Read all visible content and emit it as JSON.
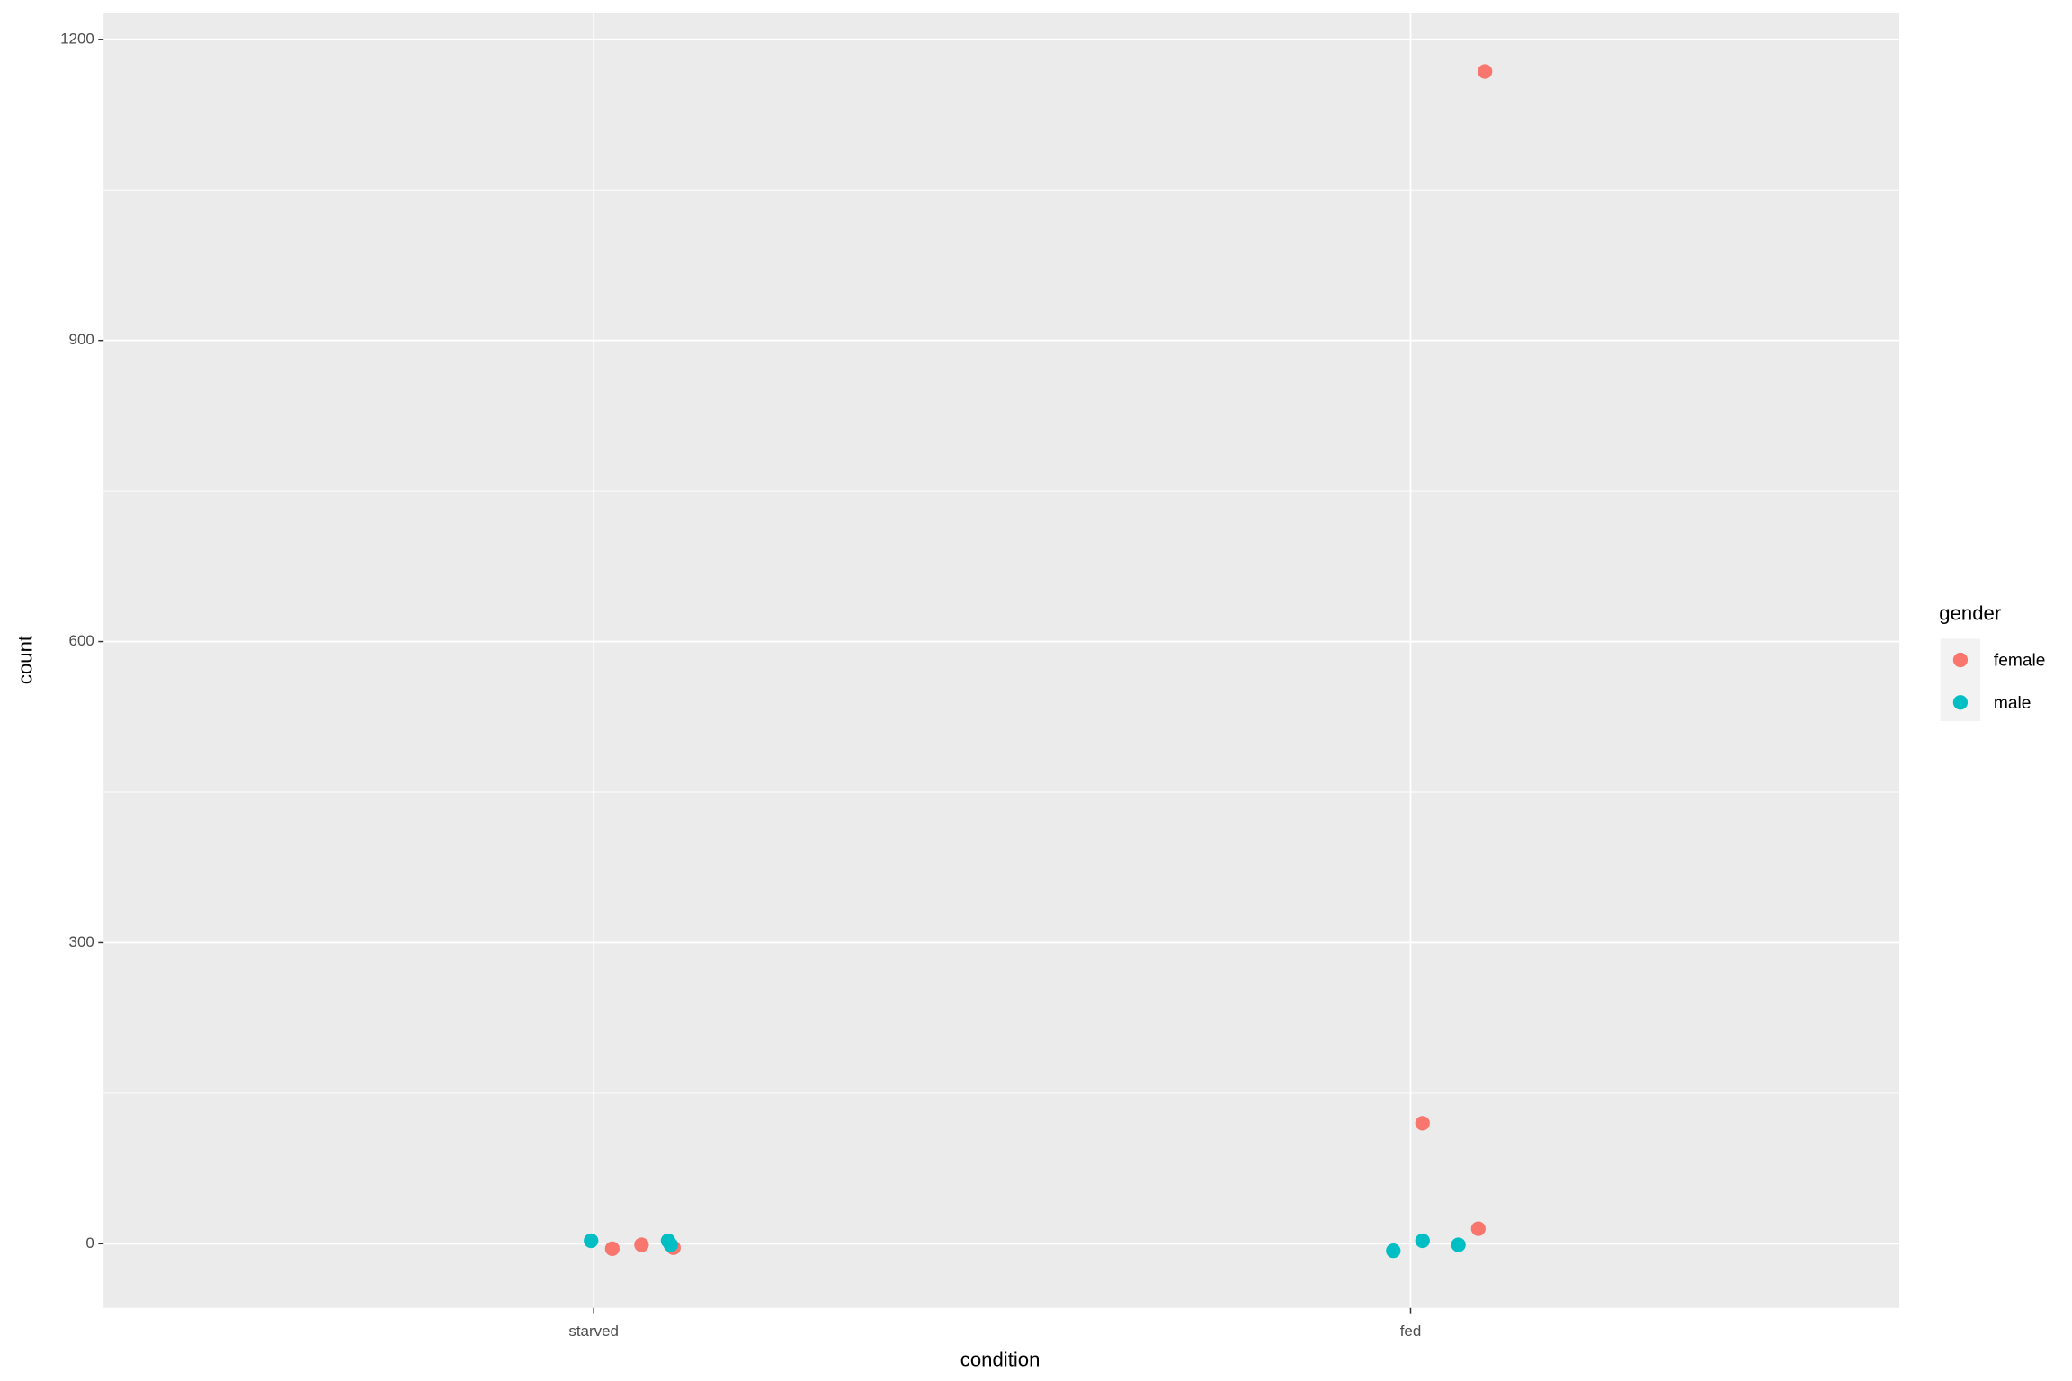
{
  "chart_data": {
    "type": "scatter",
    "categories": [
      "starved",
      "fed"
    ],
    "x_label": "condition",
    "y_label": "count",
    "legend_title": "gender",
    "legend_position": "right",
    "grid": true,
    "ylim": [
      -64,
      1226
    ],
    "yticks": [
      0,
      300,
      600,
      900,
      1200
    ],
    "series": [
      {
        "name": "female",
        "color": "#F8766D",
        "x": [
          "starved",
          "starved",
          "starved",
          "fed",
          "fed",
          "fed"
        ],
        "values": [
          -5,
          -1,
          -4,
          1168,
          120,
          15
        ]
      },
      {
        "name": "male",
        "color": "#00BFC4",
        "x": [
          "starved",
          "starved",
          "starved",
          "fed",
          "fed",
          "fed"
        ],
        "values": [
          3,
          3,
          -1,
          -7,
          3,
          -1
        ]
      }
    ]
  }
}
